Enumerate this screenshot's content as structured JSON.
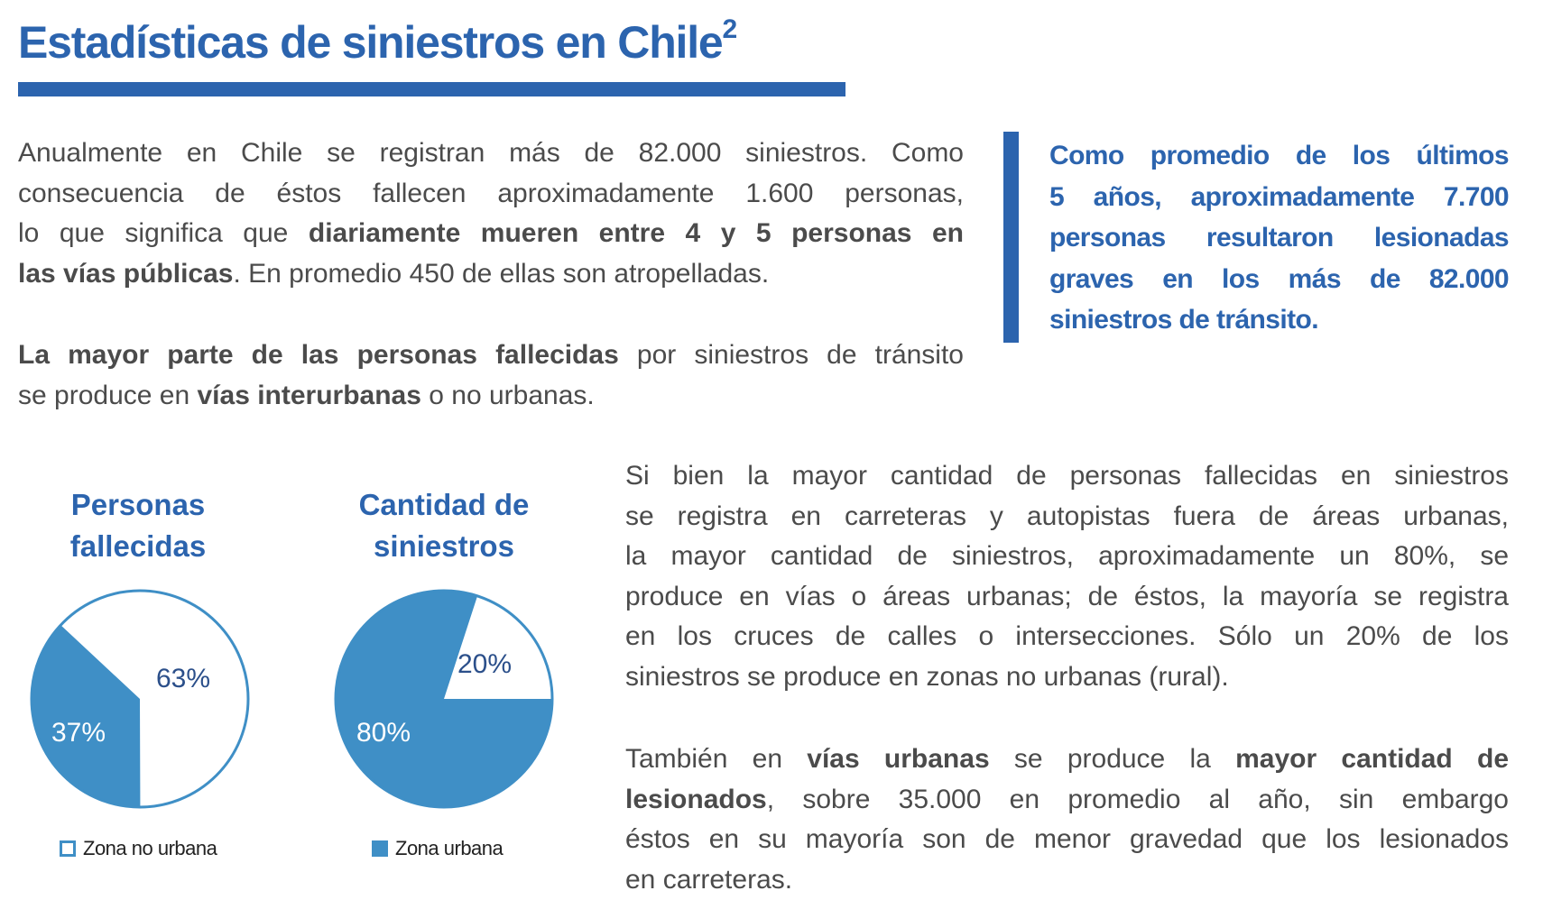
{
  "title": {
    "text": "Estadísticas de siniestros en Chile",
    "superscript": "2"
  },
  "paragraph1": [
    [
      {
        "t": "Anualmente en Chile se registran más de 82.000 siniestros. Como",
        "b": false
      }
    ],
    [
      {
        "t": "consecuencia de éstos fallecen aproximadamente 1.600 personas,",
        "b": false
      }
    ],
    [
      {
        "t": "lo que significa que ",
        "b": false
      },
      {
        "t": "diariamente mueren entre 4 y 5 personas en",
        "b": true
      }
    ],
    [
      {
        "t": "las vías públicas",
        "b": true
      },
      {
        "t": ". En promedio 450 de ellas son atropelladas.",
        "b": false
      }
    ]
  ],
  "paragraph2": [
    [
      {
        "t": "La mayor parte de las personas fallecidas",
        "b": true
      },
      {
        "t": " por siniestros de tránsito",
        "b": false
      }
    ],
    [
      {
        "t": "se produce en ",
        "b": false
      },
      {
        "t": "vías interurbanas",
        "b": true
      },
      {
        "t": " o no urbanas.",
        "b": false
      }
    ]
  ],
  "callout": [
    "Como promedio de los últimos",
    "5 años, aproximadamente 7.700",
    "personas resultaron lesionadas",
    "graves en los más de 82.000",
    "siniestros de tránsito."
  ],
  "paragraph3": [
    [
      {
        "t": "Si bien la mayor cantidad de personas fallecidas en siniestros",
        "b": false
      }
    ],
    [
      {
        "t": "se registra en carreteras y autopistas fuera de áreas urbanas,",
        "b": false
      }
    ],
    [
      {
        "t": "la mayor cantidad de siniestros, aproximadamente un 80%, se",
        "b": false
      }
    ],
    [
      {
        "t": "produce en vías o áreas urbanas; de éstos, la mayoría se registra",
        "b": false
      }
    ],
    [
      {
        "t": "en los cruces de calles o intersecciones. Sólo un 20% de los",
        "b": false
      }
    ],
    [
      {
        "t": "siniestros se produce en zonas no urbanas (rural).",
        "b": false
      }
    ]
  ],
  "paragraph4": [
    [
      {
        "t": "También en ",
        "b": false
      },
      {
        "t": "vías urbanas",
        "b": true
      },
      {
        "t": " se produce la ",
        "b": false
      },
      {
        "t": "mayor cantidad de",
        "b": true
      }
    ],
    [
      {
        "t": "lesionados",
        "b": true
      },
      {
        "t": ", sobre 35.000 en promedio al año, sin embargo",
        "b": false
      }
    ],
    [
      {
        "t": "éstos en su mayoría son de menor gravedad que los lesionados",
        "b": false
      }
    ],
    [
      {
        "t": "en carreteras.",
        "b": false
      }
    ]
  ],
  "colors": {
    "brand": "#2c64ae",
    "urbana": "#3f8fc6",
    "no_urbana": "#ffffff",
    "label_dark": "#2b4f8a"
  },
  "chart_data": [
    {
      "type": "pie",
      "title": "Personas fallecidas",
      "title_lines": [
        "Personas",
        "fallecidas"
      ],
      "slices": [
        {
          "name": "Zona no urbana",
          "value": 63,
          "label": "63%"
        },
        {
          "name": "Zona urbana",
          "value": 37,
          "label": "37%"
        }
      ],
      "legend": {
        "label": "Zona no urbana",
        "position": "bottom"
      }
    },
    {
      "type": "pie",
      "title": "Cantidad de siniestros",
      "title_lines": [
        "Cantidad de",
        "siniestros"
      ],
      "slices": [
        {
          "name": "Zona no urbana",
          "value": 20,
          "label": "20%"
        },
        {
          "name": "Zona urbana",
          "value": 80,
          "label": "80%"
        }
      ],
      "legend": {
        "label": "Zona urbana",
        "position": "bottom"
      }
    }
  ]
}
